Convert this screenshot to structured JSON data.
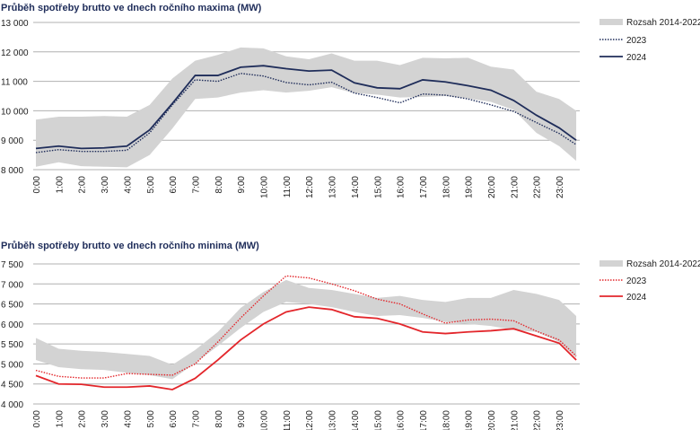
{
  "chart_data": [
    {
      "type": "line",
      "title": "Průběh spotřeby brutto ve dnech ročního maxima (MW)",
      "ylim": [
        8000,
        13000
      ],
      "yticks": [
        8000,
        9000,
        10000,
        11000,
        12000,
        13000
      ],
      "ytick_labels": [
        "8 000",
        "9 000",
        "10 000",
        "11 000",
        "12 000",
        "13 000"
      ],
      "xtick_labels": [
        "0:00",
        "1:00",
        "2:00",
        "3:00",
        "4:00",
        "5:00",
        "6:00",
        "7:00",
        "8:00",
        "9:00",
        "10:00",
        "11:00",
        "12:00",
        "13:00",
        "14:00",
        "15:00",
        "16:00",
        "17:00",
        "18:00",
        "19:00",
        "20:00",
        "21:00",
        "22:00",
        "23:00"
      ],
      "x": [
        0,
        1,
        2,
        3,
        4,
        5,
        6,
        7,
        8,
        9,
        10,
        11,
        12,
        13,
        14,
        15,
        16,
        17,
        18,
        19,
        20,
        21,
        22,
        23,
        23.75
      ],
      "legend_position": "right",
      "colors": {
        "band": "#d3d3d3",
        "s2023": "#1f2d5a",
        "s2024": "#1f2d5a"
      },
      "band": {
        "name": "Rozsah 2014-2022",
        "low": [
          8100,
          8250,
          8120,
          8100,
          8080,
          8500,
          9400,
          10400,
          10450,
          10620,
          10700,
          10620,
          10680,
          10800,
          10600,
          10550,
          10450,
          10470,
          10500,
          10420,
          10300,
          10030,
          9250,
          8800,
          8300
        ],
        "high": [
          9700,
          9800,
          9800,
          9820,
          9800,
          10200,
          11100,
          11700,
          11900,
          12150,
          12120,
          11850,
          11750,
          11950,
          11700,
          11700,
          11550,
          11800,
          11780,
          11800,
          11500,
          11400,
          10650,
          10400,
          10000
        ]
      },
      "series": [
        {
          "name": "2023",
          "style": "dotted",
          "values": [
            8580,
            8680,
            8620,
            8620,
            8660,
            9250,
            10200,
            11050,
            11000,
            11270,
            11180,
            10960,
            10880,
            10970,
            10600,
            10450,
            10270,
            10570,
            10530,
            10400,
            10200,
            9980,
            9600,
            9230,
            8850
          ]
        },
        {
          "name": "2024",
          "style": "solid",
          "values": [
            8720,
            8800,
            8720,
            8740,
            8800,
            9350,
            10250,
            11200,
            11200,
            11480,
            11530,
            11430,
            11350,
            11380,
            10950,
            10780,
            10750,
            11050,
            10980,
            10850,
            10700,
            10350,
            9850,
            9420,
            9000
          ]
        }
      ]
    },
    {
      "type": "line",
      "title": "Průběh spotřeby brutto ve dnech ročního minima (MW)",
      "ylim": [
        4000,
        7500
      ],
      "yticks": [
        4000,
        4500,
        5000,
        5500,
        6000,
        6500,
        7000,
        7500
      ],
      "ytick_labels": [
        "4 000",
        "4 500",
        "5 000",
        "5 500",
        "6 000",
        "6 500",
        "7 000",
        "7 500"
      ],
      "xtick_labels": [
        "0:00",
        "1:00",
        "2:00",
        "3:00",
        "4:00",
        "5:00",
        "6:00",
        "7:00",
        "8:00",
        "9:00",
        "10:00",
        "11:00",
        "12:00",
        "13:00",
        "14:00",
        "15:00",
        "16:00",
        "17:00",
        "18:00",
        "19:00",
        "20:00",
        "21:00",
        "22:00",
        "23:00"
      ],
      "x": [
        0,
        1,
        2,
        3,
        4,
        5,
        6,
        7,
        8,
        9,
        10,
        11,
        12,
        13,
        14,
        15,
        16,
        17,
        18,
        19,
        20,
        21,
        22,
        23,
        23.75
      ],
      "legend_position": "right",
      "colors": {
        "band": "#d3d3d3",
        "s2023": "#e3262b",
        "s2024": "#e3262b"
      },
      "band": {
        "name": "Rozsah 2014-2022",
        "low": [
          5100,
          4920,
          4870,
          4850,
          4780,
          4720,
          4620,
          5020,
          5450,
          5900,
          6300,
          6550,
          6500,
          6420,
          6300,
          6200,
          6220,
          6150,
          6050,
          6000,
          5950,
          5850,
          5800,
          5550,
          5150
        ],
        "high": [
          5650,
          5380,
          5330,
          5300,
          5250,
          5200,
          4980,
          5350,
          5800,
          6400,
          6800,
          7100,
          6900,
          6850,
          6750,
          6650,
          6700,
          6600,
          6550,
          6650,
          6650,
          6850,
          6750,
          6600,
          6200
        ]
      },
      "series": [
        {
          "name": "2023",
          "style": "dotted",
          "values": [
            4840,
            4690,
            4650,
            4650,
            4760,
            4740,
            4720,
            5000,
            5550,
            6150,
            6700,
            7200,
            7150,
            7000,
            6830,
            6620,
            6500,
            6250,
            6020,
            6100,
            6120,
            6080,
            5820,
            5600,
            5200
          ]
        },
        {
          "name": "2024",
          "style": "solid",
          "values": [
            4710,
            4500,
            4490,
            4420,
            4420,
            4450,
            4360,
            4640,
            5100,
            5600,
            6000,
            6300,
            6420,
            6360,
            6180,
            6140,
            6000,
            5800,
            5760,
            5800,
            5830,
            5880,
            5700,
            5520,
            5100
          ]
        }
      ]
    }
  ]
}
